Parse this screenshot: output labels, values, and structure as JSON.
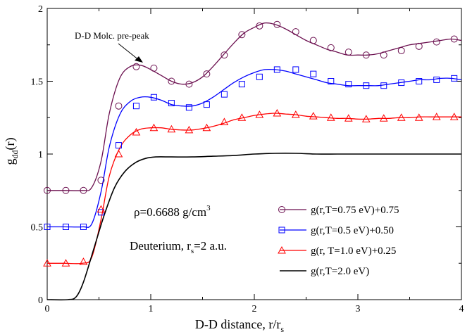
{
  "chart_data": {
    "type": "line",
    "title": "",
    "xlabel": "D-D distance, r/r",
    "xlabel_sub": "s",
    "ylabel": "g",
    "ylabel_sub": "dd",
    "ylabel_suffix": "(r)",
    "xlim": [
      0,
      4
    ],
    "ylim": [
      0,
      2
    ],
    "xticks": [
      "0",
      "1",
      "2",
      "3",
      "4"
    ],
    "yticks": [
      "0",
      "0.5",
      "1",
      "1.5",
      "2"
    ],
    "grid": false,
    "legend_position": "bottom-right",
    "annotations": {
      "prepeak": "D-D Molc. pre-peak",
      "density_text": "ρ=0.6688 g/cm",
      "density_sup": "3",
      "system_text": "Deuterium,  r",
      "system_sub": "s",
      "system_suffix": "=2 a.u."
    },
    "series": [
      {
        "name": "g(r,T=0.75 eV)+0.75",
        "color": "#6b0f4f",
        "marker": "circle",
        "x": [
          0,
          0.17,
          0.34,
          0.43,
          0.52,
          0.6,
          0.7,
          0.8,
          0.9,
          1.0,
          1.1,
          1.2,
          1.3,
          1.4,
          1.5,
          1.6,
          1.7,
          1.8,
          1.9,
          2.0,
          2.1,
          2.2,
          2.3,
          2.4,
          2.5,
          2.6,
          2.7,
          2.8,
          2.9,
          3.0,
          3.1,
          3.2,
          3.3,
          3.4,
          3.5,
          3.6,
          3.7,
          3.8,
          3.9,
          4.0
        ],
        "y": [
          0.75,
          0.75,
          0.75,
          0.77,
          0.95,
          1.28,
          1.52,
          1.6,
          1.61,
          1.58,
          1.54,
          1.5,
          1.48,
          1.49,
          1.53,
          1.6,
          1.68,
          1.76,
          1.83,
          1.87,
          1.9,
          1.89,
          1.86,
          1.82,
          1.78,
          1.75,
          1.72,
          1.7,
          1.68,
          1.68,
          1.68,
          1.69,
          1.71,
          1.73,
          1.75,
          1.76,
          1.77,
          1.78,
          1.79,
          1.78
        ],
        "marker_x": [
          0.0,
          0.18,
          0.35,
          0.52,
          0.69,
          0.86,
          1.03,
          1.2,
          1.37,
          1.54,
          1.71,
          1.88,
          2.05,
          2.22,
          2.4,
          2.57,
          2.74,
          2.91,
          3.08,
          3.25,
          3.42,
          3.59,
          3.76,
          3.93
        ],
        "marker_y": [
          0.75,
          0.75,
          0.75,
          0.82,
          1.33,
          1.6,
          1.59,
          1.5,
          1.48,
          1.55,
          1.68,
          1.82,
          1.88,
          1.89,
          1.84,
          1.78,
          1.73,
          1.7,
          1.68,
          1.68,
          1.71,
          1.74,
          1.77,
          1.79
        ]
      },
      {
        "name": "g(r,T=0.5 eV)+0.50",
        "color": "#0000ff",
        "marker": "square",
        "x": [
          0,
          0.17,
          0.34,
          0.43,
          0.52,
          0.6,
          0.7,
          0.8,
          0.9,
          1.0,
          1.1,
          1.2,
          1.3,
          1.4,
          1.5,
          1.6,
          1.7,
          1.8,
          1.9,
          2.0,
          2.1,
          2.2,
          2.3,
          2.4,
          2.5,
          2.6,
          2.7,
          2.8,
          2.9,
          3.0,
          3.1,
          3.2,
          3.3,
          3.4,
          3.5,
          3.6,
          3.7,
          3.8,
          3.9,
          4.0
        ],
        "y": [
          0.5,
          0.5,
          0.5,
          0.52,
          0.74,
          1.05,
          1.27,
          1.36,
          1.39,
          1.39,
          1.37,
          1.34,
          1.33,
          1.33,
          1.35,
          1.39,
          1.44,
          1.49,
          1.53,
          1.56,
          1.58,
          1.58,
          1.57,
          1.55,
          1.53,
          1.51,
          1.49,
          1.48,
          1.47,
          1.47,
          1.47,
          1.47,
          1.48,
          1.49,
          1.5,
          1.51,
          1.51,
          1.52,
          1.52,
          1.51
        ],
        "marker_x": [
          0.0,
          0.18,
          0.35,
          0.52,
          0.69,
          0.86,
          1.03,
          1.2,
          1.37,
          1.54,
          1.71,
          1.88,
          2.05,
          2.22,
          2.4,
          2.57,
          2.74,
          2.91,
          3.08,
          3.25,
          3.42,
          3.59,
          3.76,
          3.93
        ],
        "marker_y": [
          0.5,
          0.5,
          0.5,
          0.6,
          1.06,
          1.33,
          1.39,
          1.35,
          1.32,
          1.34,
          1.41,
          1.48,
          1.53,
          1.58,
          1.58,
          1.55,
          1.5,
          1.48,
          1.47,
          1.47,
          1.49,
          1.5,
          1.51,
          1.52
        ]
      },
      {
        "name": "g(r, T=1.0 eV)+0.25",
        "color": "#ff0000",
        "marker": "triangle",
        "x": [
          0,
          0.17,
          0.34,
          0.43,
          0.52,
          0.6,
          0.7,
          0.8,
          0.9,
          1.0,
          1.1,
          1.2,
          1.3,
          1.4,
          1.5,
          1.6,
          1.7,
          1.8,
          1.9,
          2.0,
          2.1,
          2.2,
          2.3,
          2.4,
          2.5,
          2.6,
          2.7,
          2.8,
          2.9,
          3.0,
          3.1,
          3.2,
          3.3,
          3.4,
          3.5,
          3.6,
          3.7,
          3.8,
          3.9,
          4.0
        ],
        "y": [
          0.25,
          0.25,
          0.25,
          0.29,
          0.55,
          0.85,
          1.04,
          1.13,
          1.17,
          1.18,
          1.18,
          1.17,
          1.165,
          1.165,
          1.175,
          1.19,
          1.21,
          1.235,
          1.25,
          1.265,
          1.275,
          1.28,
          1.275,
          1.27,
          1.26,
          1.255,
          1.25,
          1.245,
          1.245,
          1.24,
          1.24,
          1.245,
          1.245,
          1.25,
          1.25,
          1.255,
          1.255,
          1.255,
          1.255,
          1.255
        ],
        "marker_x": [
          0.0,
          0.18,
          0.35,
          0.52,
          0.69,
          0.86,
          1.03,
          1.2,
          1.37,
          1.54,
          1.71,
          1.88,
          2.05,
          2.22,
          2.4,
          2.57,
          2.74,
          2.91,
          3.08,
          3.25,
          3.42,
          3.59,
          3.76,
          3.93
        ],
        "marker_y": [
          0.25,
          0.25,
          0.26,
          0.62,
          1.0,
          1.15,
          1.18,
          1.17,
          1.165,
          1.18,
          1.22,
          1.25,
          1.27,
          1.28,
          1.27,
          1.26,
          1.25,
          1.245,
          1.24,
          1.245,
          1.25,
          1.25,
          1.255,
          1.255
        ]
      },
      {
        "name": "g(r,T=2.0 eV)",
        "color": "#000000",
        "marker": "none",
        "x": [
          0,
          0.2,
          0.28,
          0.35,
          0.45,
          0.55,
          0.65,
          0.75,
          0.85,
          0.95,
          1.05,
          1.2,
          1.4,
          1.6,
          1.8,
          2.0,
          2.2,
          2.4,
          2.6,
          2.8,
          3.0,
          3.2,
          3.4,
          3.6,
          3.8,
          4.0
        ],
        "y": [
          0,
          0,
          0.02,
          0.12,
          0.35,
          0.58,
          0.77,
          0.88,
          0.94,
          0.97,
          0.98,
          0.98,
          0.98,
          0.985,
          0.99,
          1.0,
          1.005,
          1.005,
          1.0,
          1.0,
          1.0,
          1.0,
          1.0,
          1.0,
          1.0,
          1.0
        ]
      }
    ]
  }
}
